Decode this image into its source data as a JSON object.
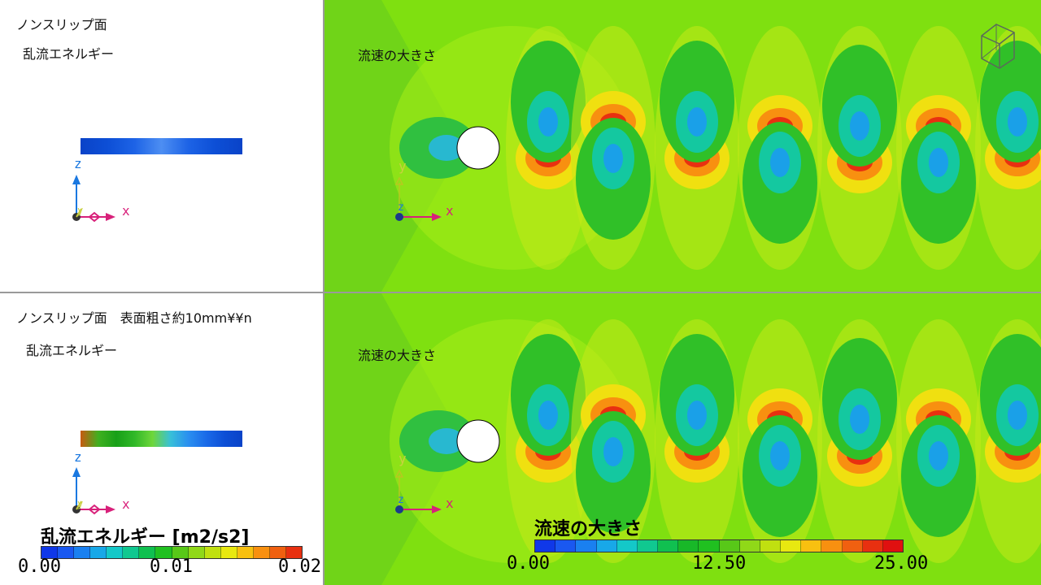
{
  "panels": {
    "top": {
      "boundary_label": "ノンスリップ面",
      "field_label": "乱流エネルギー",
      "flow_label": "流速の大きさ",
      "strip_colors": [
        "#0a43c8",
        "#0d4fd6",
        "#1d63e6",
        "#4d8ef2",
        "#1d63e6",
        "#0d4fd6",
        "#0a43c8"
      ]
    },
    "bottom": {
      "boundary_label": "ノンスリップ面　表面粗さ約10mm¥¥n",
      "field_label": "乱流エネルギー",
      "flow_label": "流速の大きさ",
      "strip_colors": [
        "#c85a10",
        "#3fb020",
        "#18a018",
        "#30b828",
        "#6ed63a",
        "#38c0d8",
        "#2a8ff0",
        "#1a6ae8",
        "#0d4fd6",
        "#0a43c8"
      ]
    }
  },
  "axes": {
    "z": "z",
    "x": "x",
    "y": "y"
  },
  "legend_tke": {
    "title": "乱流エネルギー [m2/s2]",
    "ticks": [
      "0.00",
      "0.01",
      "0.02"
    ],
    "colors": [
      "#1038e8",
      "#1a58f0",
      "#1a80f0",
      "#18a8e8",
      "#14c8c8",
      "#10c890",
      "#10c050",
      "#20c020",
      "#58c818",
      "#90d818",
      "#c0e010",
      "#e8e810",
      "#f8c010",
      "#f89010",
      "#f06010",
      "#e83010"
    ]
  },
  "legend_vel": {
    "title": "流速の大きさ",
    "ticks": [
      "0.00",
      "12.50",
      "25.00"
    ],
    "colors": [
      "#1038e8",
      "#1a58f0",
      "#1a80f0",
      "#18a8e8",
      "#14c8c8",
      "#10c890",
      "#10c050",
      "#18b828",
      "#20c020",
      "#58c818",
      "#90d818",
      "#c0e010",
      "#e8e810",
      "#f8c010",
      "#f89010",
      "#f06010",
      "#e83010",
      "#e01010"
    ]
  },
  "colors": {
    "flow_background": "#7fe010",
    "orientation_icon": "orientation-cube-icon"
  }
}
